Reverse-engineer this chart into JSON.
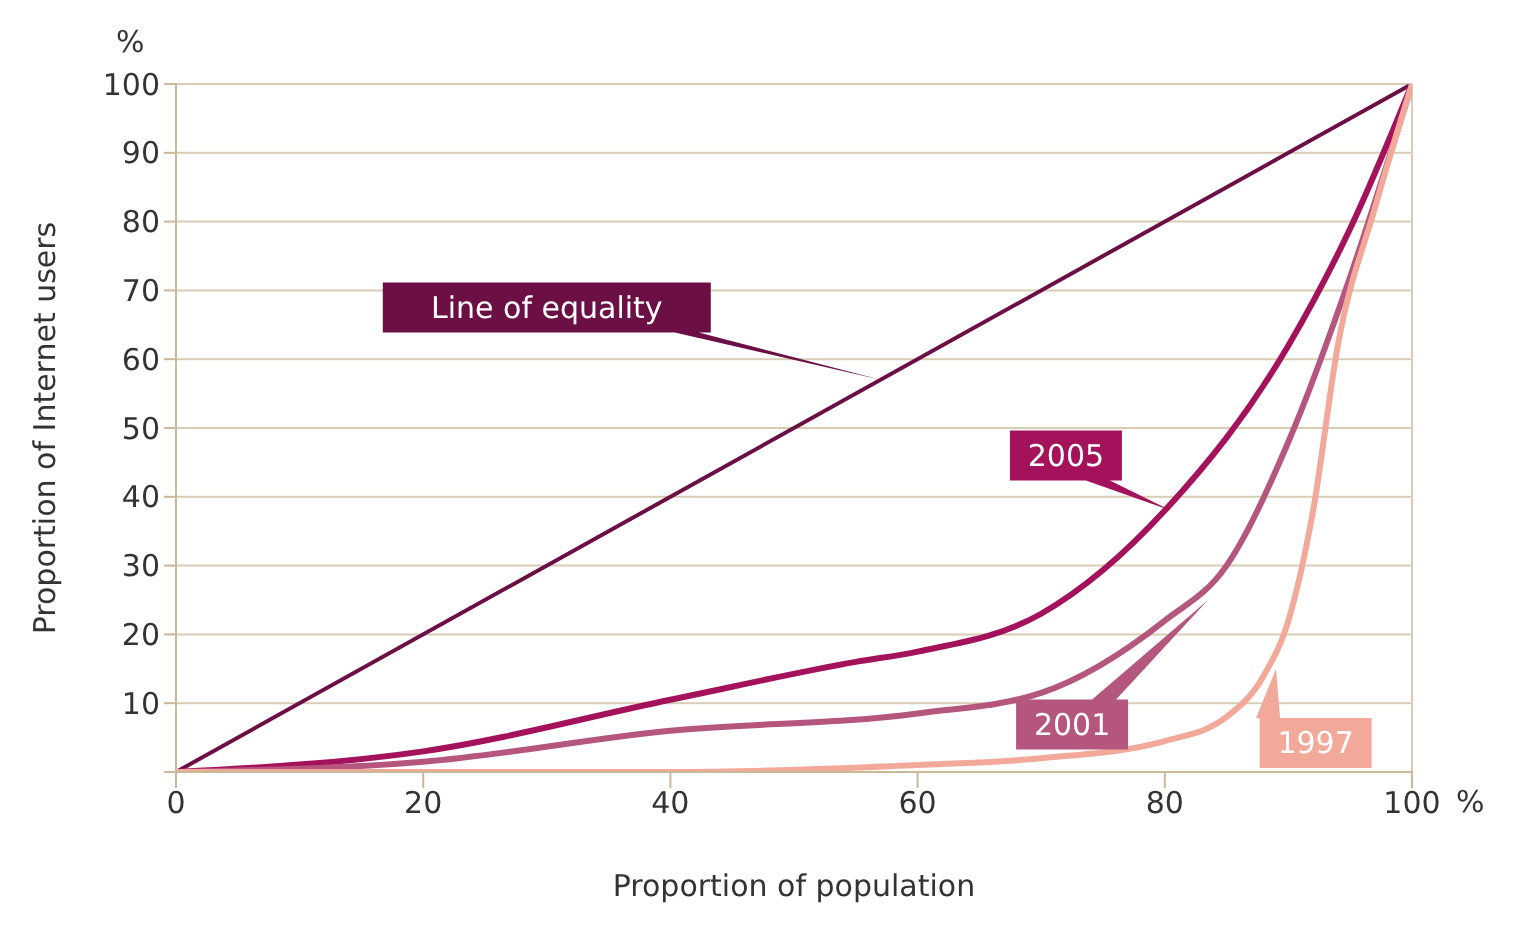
{
  "chart_data": {
    "type": "line",
    "xlabel": "Proportion of population",
    "ylabel": "Proportion of Internet users",
    "annotations": [
      "%",
      "%"
    ],
    "xlim": [
      0,
      100
    ],
    "xticks": [
      0,
      20,
      40,
      60,
      80,
      100
    ],
    "ylim": [
      0,
      100
    ],
    "yticks": [
      {
        "value": 0,
        "label": null
      },
      10,
      20,
      30,
      40,
      50,
      60,
      70,
      80,
      90,
      100
    ],
    "grid": "y",
    "legend": false,
    "marker": "none",
    "line_style": "solid",
    "series": [
      {
        "name": "Line of equality",
        "color": "#6b0f45",
        "x": [
          0,
          100
        ],
        "values": [
          0,
          100
        ]
      },
      {
        "name": "2005",
        "color": "#a3125a",
        "x": [
          0,
          20,
          40,
          55,
          60,
          70,
          80,
          90,
          95,
          100
        ],
        "values": [
          0,
          3,
          10.5,
          16,
          17.5,
          23,
          38,
          62,
          79,
          100
        ]
      },
      {
        "name": "2001",
        "color": "#b5567f",
        "x": [
          0,
          20,
          40,
          60,
          70,
          80,
          85,
          90,
          95,
          100
        ],
        "values": [
          0,
          1.5,
          6,
          8.5,
          11.5,
          22,
          30,
          48,
          72,
          100
        ]
      },
      {
        "name": "1997",
        "color": "#f2a99a",
        "x": [
          0,
          40,
          60,
          70,
          80,
          85,
          88,
          90,
          92,
          94,
          97,
          100
        ],
        "values": [
          0,
          0,
          1,
          2,
          4.5,
          8,
          14,
          22,
          38,
          62,
          82,
          100
        ]
      }
    ]
  }
}
